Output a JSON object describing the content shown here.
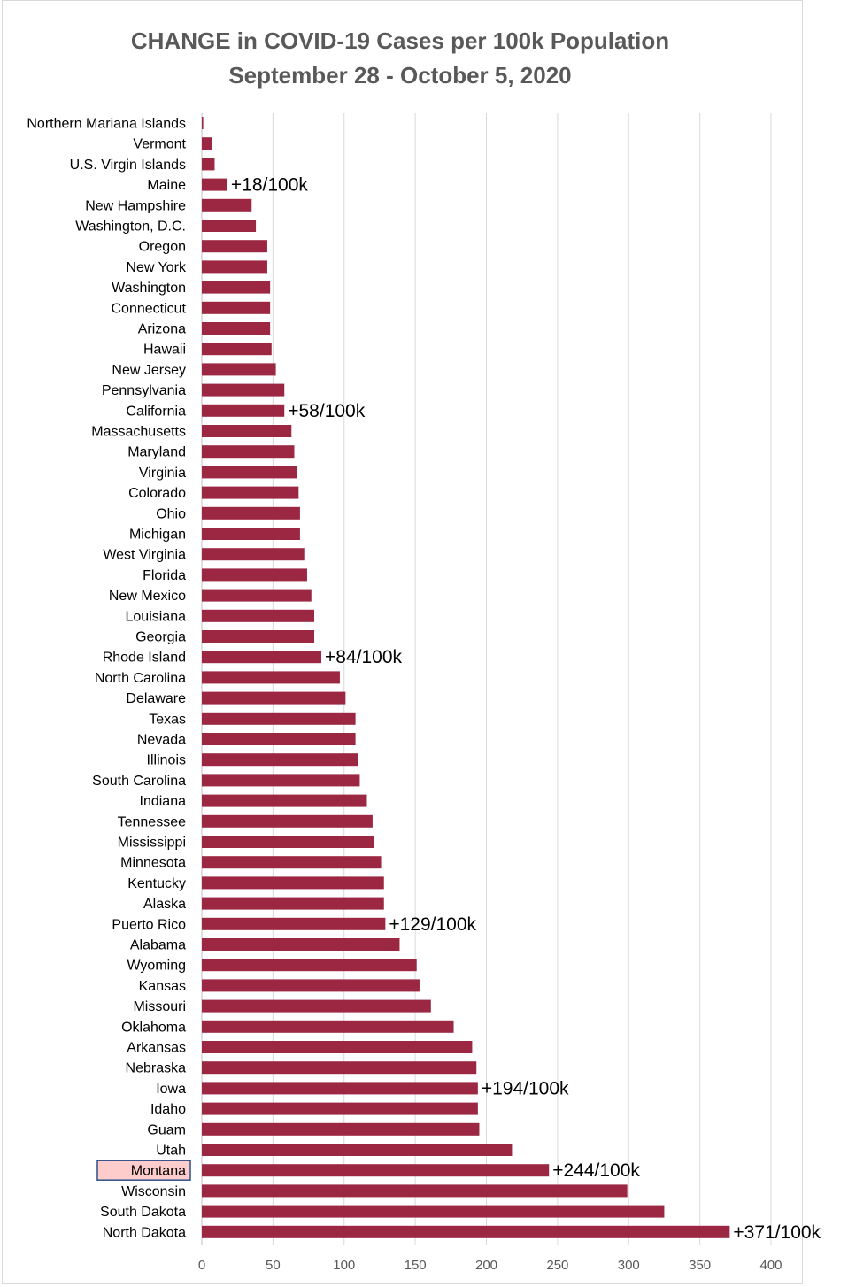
{
  "chart_data": {
    "type": "bar",
    "orientation": "horizontal",
    "title": "CHANGE in COVID-19 Cases per 100k Population",
    "subtitle": "September 28 - October 5, 2020",
    "xlim": [
      0,
      400
    ],
    "x_ticks": [
      0,
      50,
      100,
      150,
      200,
      250,
      300,
      350,
      400
    ],
    "grid": "vertical",
    "bar_color": "#9b2743",
    "highlight": {
      "category": "Montana",
      "fill": "#ffcccc",
      "border": "#2e4f8a"
    },
    "categories": [
      "Northern Mariana Islands",
      "Vermont",
      "U.S. Virgin Islands",
      "Maine",
      "New Hampshire",
      "Washington, D.C.",
      "Oregon",
      "New York",
      "Washington",
      "Connecticut",
      "Arizona",
      "Hawaii",
      "New Jersey",
      "Pennsylvania",
      "California",
      "Massachusetts",
      "Maryland",
      "Virginia",
      "Colorado",
      "Ohio",
      "Michigan",
      "West Virginia",
      "Florida",
      "New Mexico",
      "Louisiana",
      "Georgia",
      "Rhode Island",
      "North Carolina",
      "Delaware",
      "Texas",
      "Nevada",
      "Illinois",
      "South Carolina",
      "Indiana",
      "Tennessee",
      "Mississippi",
      "Minnesota",
      "Kentucky",
      "Alaska",
      "Puerto Rico",
      "Alabama",
      "Wyoming",
      "Kansas",
      "Missouri",
      "Oklahoma",
      "Arkansas",
      "Nebraska",
      "Iowa",
      "Idaho",
      "Guam",
      "Utah",
      "Montana",
      "Wisconsin",
      "South Dakota",
      "North Dakota"
    ],
    "values": [
      1,
      7,
      9,
      18,
      35,
      38,
      46,
      46,
      48,
      48,
      48,
      49,
      52,
      58,
      58,
      63,
      65,
      67,
      68,
      69,
      69,
      72,
      74,
      77,
      79,
      79,
      84,
      97,
      101,
      108,
      108,
      110,
      111,
      116,
      120,
      121,
      126,
      128,
      128,
      129,
      139,
      151,
      153,
      161,
      177,
      190,
      193,
      194,
      194,
      195,
      218,
      244,
      299,
      325,
      371
    ],
    "annotations": [
      {
        "category": "Maine",
        "text": "+18/100k"
      },
      {
        "category": "California",
        "text": "+58/100k"
      },
      {
        "category": "Rhode Island",
        "text": "+84/100k"
      },
      {
        "category": "Puerto Rico",
        "text": "+129/100k"
      },
      {
        "category": "Iowa",
        "text": "+194/100k"
      },
      {
        "category": "Montana",
        "text": "+244/100k"
      },
      {
        "category": "North Dakota",
        "text": "+371/100k"
      }
    ]
  }
}
